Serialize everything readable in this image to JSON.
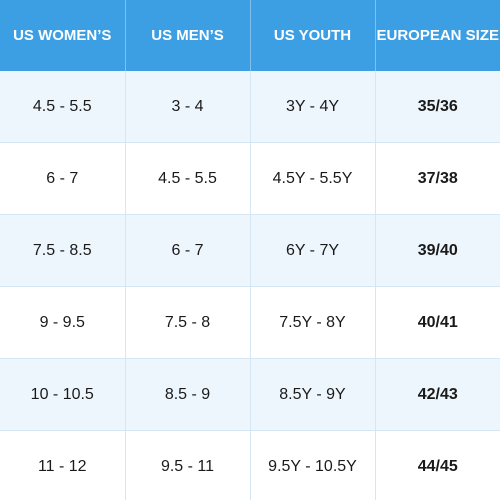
{
  "table": {
    "header": [
      "US WOMEN’S",
      "US MEN’S",
      "US YOUTH",
      "EUROPEAN SIZE"
    ],
    "rows": [
      [
        "4.5 - 5.5",
        "3 - 4",
        "3Y - 4Y",
        "35/36"
      ],
      [
        "6 - 7",
        "4.5 - 5.5",
        "4.5Y - 5.5Y",
        "37/38"
      ],
      [
        "7.5 - 8.5",
        "6 - 7",
        "6Y - 7Y",
        "39/40"
      ],
      [
        "9 - 9.5",
        "7.5 - 8",
        "7.5Y - 8Y",
        "40/41"
      ],
      [
        "10 - 10.5",
        "8.5 - 9",
        "8.5Y - 9Y",
        "42/43"
      ],
      [
        "11 - 12",
        "9.5 - 11",
        "9.5Y - 10.5Y",
        "44/45"
      ]
    ]
  }
}
